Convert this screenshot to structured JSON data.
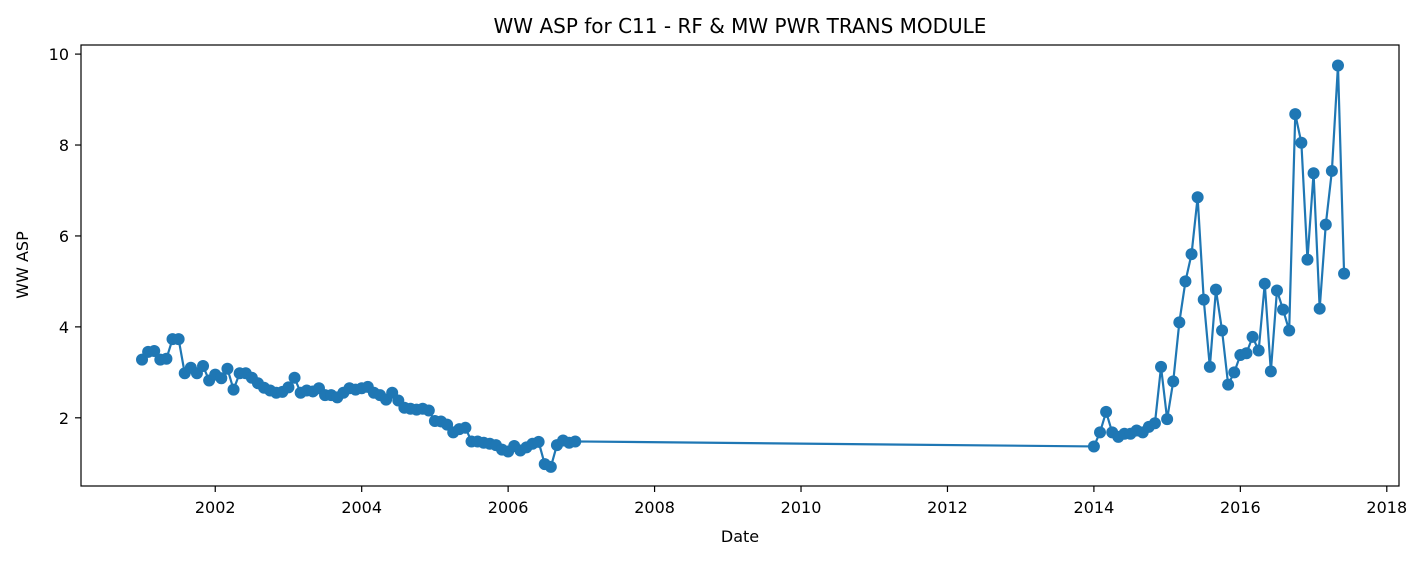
{
  "chart_data": {
    "type": "line",
    "title": "WW ASP for C11 - RF & MW PWR TRANS MODULE",
    "xlabel": "Date",
    "ylabel": "WW ASP",
    "x_ticks": [
      "2002",
      "2004",
      "2006",
      "2008",
      "2010",
      "2012",
      "2014",
      "2016",
      "2018"
    ],
    "y_ticks": [
      "2",
      "4",
      "6",
      "8",
      "10"
    ],
    "xlim": [
      "2000-03",
      "2018-03"
    ],
    "ylim": [
      0.5,
      10.2
    ],
    "grid": false,
    "legend": "none",
    "color": "#1f77b4",
    "marker": "circle",
    "series": [
      {
        "x": [
          "2001-01",
          "2001-02",
          "2001-03",
          "2001-04",
          "2001-05",
          "2001-06",
          "2001-07",
          "2001-08",
          "2001-09",
          "2001-10",
          "2001-11",
          "2001-12",
          "2002-01",
          "2002-02",
          "2002-03",
          "2002-04",
          "2002-05",
          "2002-06",
          "2002-07",
          "2002-08",
          "2002-09",
          "2002-10",
          "2002-11",
          "2002-12",
          "2003-01",
          "2003-02",
          "2003-03",
          "2003-04",
          "2003-05",
          "2003-06",
          "2003-07",
          "2003-08",
          "2003-09",
          "2003-10",
          "2003-11",
          "2003-12",
          "2004-01",
          "2004-02",
          "2004-03",
          "2004-04",
          "2004-05",
          "2004-06",
          "2004-07",
          "2004-08",
          "2004-09",
          "2004-10",
          "2004-11",
          "2004-12",
          "2005-01",
          "2005-02",
          "2005-03",
          "2005-04",
          "2005-05",
          "2005-06",
          "2005-07",
          "2005-08",
          "2005-09",
          "2005-10",
          "2005-11",
          "2005-12",
          "2006-01",
          "2006-02",
          "2006-03",
          "2006-04",
          "2006-05",
          "2006-06",
          "2006-07",
          "2006-08",
          "2006-09",
          "2006-10",
          "2006-11",
          "2006-12",
          "2014-01",
          "2014-02",
          "2014-03",
          "2014-04",
          "2014-05",
          "2014-06",
          "2014-07",
          "2014-08",
          "2014-09",
          "2014-10",
          "2014-11",
          "2014-12",
          "2015-01",
          "2015-02",
          "2015-03",
          "2015-04",
          "2015-05",
          "2015-06",
          "2015-07",
          "2015-08",
          "2015-09",
          "2015-10",
          "2015-11",
          "2015-12",
          "2016-01",
          "2016-02",
          "2016-03",
          "2016-04",
          "2016-05",
          "2016-06",
          "2016-07",
          "2016-08",
          "2016-09",
          "2016-10",
          "2016-11",
          "2016-12",
          "2017-01",
          "2017-02",
          "2017-03",
          "2017-04",
          "2017-05",
          "2017-06"
        ],
        "y": [
          3.28,
          3.45,
          3.47,
          3.28,
          3.3,
          3.73,
          3.73,
          2.98,
          3.1,
          2.98,
          3.14,
          2.82,
          2.95,
          2.87,
          3.08,
          2.62,
          2.98,
          2.98,
          2.88,
          2.76,
          2.66,
          2.6,
          2.55,
          2.57,
          2.67,
          2.88,
          2.55,
          2.6,
          2.58,
          2.65,
          2.5,
          2.5,
          2.45,
          2.55,
          2.65,
          2.62,
          2.65,
          2.68,
          2.55,
          2.5,
          2.4,
          2.55,
          2.38,
          2.22,
          2.2,
          2.18,
          2.2,
          2.16,
          1.93,
          1.92,
          1.85,
          1.68,
          1.75,
          1.78,
          1.48,
          1.48,
          1.45,
          1.43,
          1.4,
          1.3,
          1.26,
          1.38,
          1.28,
          1.35,
          1.43,
          1.47,
          0.98,
          0.92,
          1.4,
          1.5,
          1.45,
          1.48,
          1.37,
          1.68,
          2.13,
          1.68,
          1.58,
          1.65,
          1.65,
          1.72,
          1.68,
          1.8,
          1.88,
          3.12,
          1.97,
          2.8,
          4.1,
          5.0,
          5.6,
          6.85,
          4.6,
          3.12,
          4.82,
          3.92,
          2.73,
          3.0,
          3.38,
          3.42,
          3.78,
          3.48,
          4.95,
          3.02,
          4.8,
          4.38,
          3.92,
          8.68,
          8.05,
          5.48,
          7.38,
          4.4,
          6.25,
          7.43,
          9.75,
          5.17
        ]
      }
    ]
  }
}
